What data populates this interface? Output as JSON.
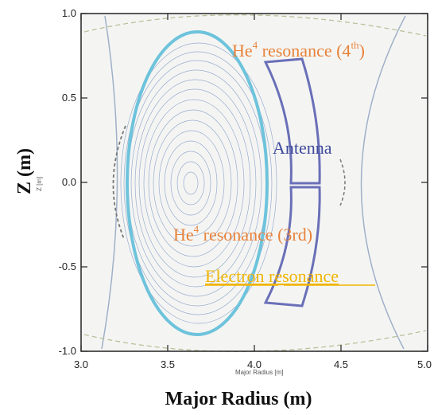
{
  "axes": {
    "x_label_small": "Major Radius [m]",
    "x_label_large": "Major Radius (m)",
    "y_label_small": "Z [m]",
    "y_label_large": "Z (m)",
    "x_ticks": [
      "3.0",
      "3.5",
      "4.0",
      "4.5",
      "5.0"
    ],
    "y_ticks": [
      "1.0",
      "0.5",
      "0.0",
      "-0.5",
      "-1.0"
    ],
    "x_range": [
      3.0,
      5.0
    ],
    "y_range": [
      -1.0,
      1.0
    ]
  },
  "annotations": {
    "he4_4th": {
      "prefix": "He",
      "mass": "4",
      "middle": " resonance (4",
      "order": "th",
      "suffix": ")",
      "color": "#e8823a"
    },
    "antenna": {
      "text": "Antenna",
      "color": "#3f4a9c"
    },
    "he4_3rd": {
      "prefix": "He",
      "mass": "4",
      "rest": " resonance (3rd)",
      "color": "#e8823a"
    },
    "electron": {
      "word1": "Electron",
      "space": " ",
      "word2": "resonance",
      "color": "#f0b400"
    }
  },
  "colors": {
    "separatrix": "#6ec3dc",
    "antenna_outline": "#6a6fb8",
    "flux_contours": "#8a9fc8",
    "frame": "#222222"
  }
}
